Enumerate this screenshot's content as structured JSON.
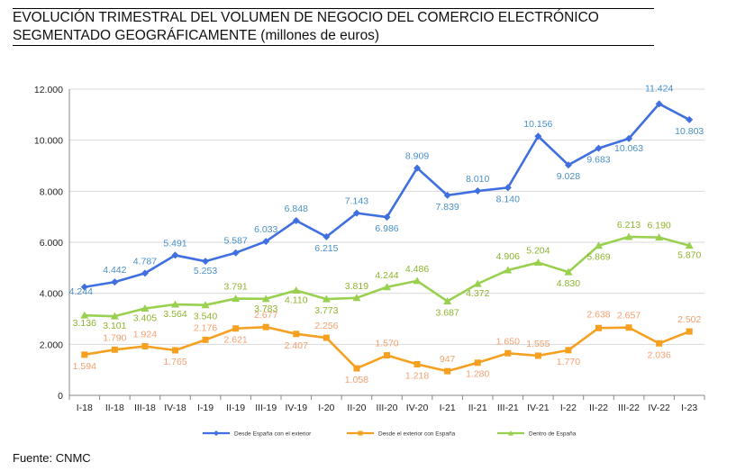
{
  "header": {
    "title_line1": "EVOLUCIÓN TRIMESTRAL DEL VOLUMEN DE NEGOCIO DEL COMERCIO ELECTRÓNICO",
    "title_line2": "SEGMENTADO GEOGRÁFICAMENTE (millones de euros)"
  },
  "footer": {
    "source": "Fuente: CNMC"
  },
  "chart_data": {
    "type": "line",
    "title": "EVOLUCIÓN TRIMESTRAL DEL VOLUMEN DE NEGOCIO DEL COMERCIO ELECTRÓNICO SEGMENTADO GEOGRÁFICAMENTE (millones de euros)",
    "categories": [
      "I-18",
      "II-18",
      "III-18",
      "IV-18",
      "I-19",
      "II-19",
      "III-19",
      "IV-19",
      "I-20",
      "II-20",
      "III-20",
      "IV-20",
      "I-21",
      "II-21",
      "III-21",
      "IV-21",
      "I-22",
      "II-22",
      "III-22",
      "IV-22",
      "I-23"
    ],
    "ylim": [
      0,
      12000
    ],
    "yticks": [
      0,
      2000,
      4000,
      6000,
      8000,
      10000,
      12000
    ],
    "ytick_labels": [
      "0",
      "2.000",
      "4.000",
      "6.000",
      "8.000",
      "10.000",
      "12.000"
    ],
    "grid": true,
    "legend_position": "bottom",
    "series": [
      {
        "name": "Desde España con el exterior",
        "color": "#3F6FE0",
        "label_color": "#4A90C8",
        "marker": "diamond",
        "values": [
          4244,
          4442,
          4787,
          5491,
          5253,
          5587,
          6033,
          6848,
          6215,
          7143,
          6986,
          8909,
          7839,
          8010,
          8140,
          10156,
          9028,
          9683,
          10063,
          11424,
          10803
        ],
        "labels": [
          "4.244",
          "4.442",
          "4.787",
          "5.491",
          "5.253",
          "5.587",
          "6.033",
          "6.848",
          "6.215",
          "7.143",
          "6.986",
          "8.909",
          "7.839",
          "8.010",
          "8.140",
          "10.156",
          "9.028",
          "9.683",
          "10.063",
          "11.424",
          "10.803"
        ]
      },
      {
        "name": "Desde el exterior con España",
        "color": "#F5A020",
        "label_color": "#F4A070",
        "marker": "square",
        "values": [
          1594,
          1790,
          1924,
          1765,
          2176,
          2621,
          2677,
          2407,
          2256,
          1058,
          1570,
          1218,
          947,
          1280,
          1650,
          1555,
          1770,
          2638,
          2657,
          2036,
          2502
        ],
        "labels": [
          "1.594",
          "1.790",
          "1.924",
          "1.765",
          "2.176",
          "2.621",
          "2.677",
          "2.407",
          "2.256",
          "1.058",
          "1.570",
          "1.218",
          "947",
          "1.280",
          "1.650",
          "1.555",
          "1.770",
          "2.638",
          "2.657",
          "2.036",
          "2.502"
        ]
      },
      {
        "name": "Dentro de España",
        "color": "#9AD050",
        "label_color": "#8DB52E",
        "marker": "triangle",
        "values": [
          3136,
          3101,
          3405,
          3564,
          3540,
          3791,
          3783,
          4110,
          3773,
          3819,
          4244,
          4486,
          3687,
          4372,
          4906,
          5204,
          4830,
          5869,
          6213,
          6190,
          5870
        ],
        "labels": [
          "3.136",
          "3.101",
          "3.405",
          "3.564",
          "3.540",
          "3.791",
          "3.783",
          "4.110",
          "3.773",
          "3.819",
          "4.244",
          "4.486",
          "3.687",
          "4.372",
          "4.906",
          "5.204",
          "4.830",
          "5.869",
          "6.213",
          "6.190",
          "5.870"
        ]
      }
    ]
  }
}
